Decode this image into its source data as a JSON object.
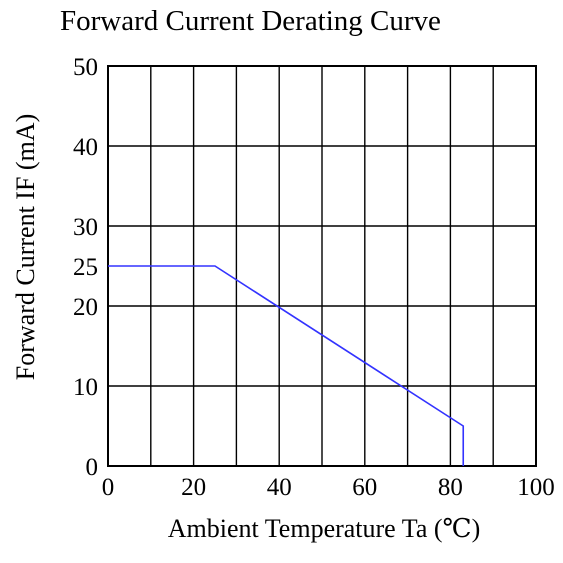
{
  "chart_data": {
    "type": "line",
    "title": "Forward Current Derating Curve",
    "xlabel": "Ambient Temperature Ta (℃)",
    "ylabel": "Forward Current IF (mA)",
    "xlim": [
      0,
      100
    ],
    "ylim": [
      0,
      50
    ],
    "x_ticks": [
      0,
      20,
      40,
      60,
      80,
      100
    ],
    "y_ticks": [
      0,
      10,
      20,
      25,
      30,
      40,
      50
    ],
    "x_gridlines": [
      0,
      10,
      20,
      30,
      40,
      50,
      60,
      70,
      80,
      90,
      100
    ],
    "y_gridlines": [
      0,
      10,
      20,
      30,
      40,
      50
    ],
    "grid": true,
    "series": [
      {
        "x": [
          0,
          25,
          83,
          83
        ],
        "y": [
          25,
          25,
          5,
          0
        ],
        "color": "#3333ff"
      }
    ]
  }
}
